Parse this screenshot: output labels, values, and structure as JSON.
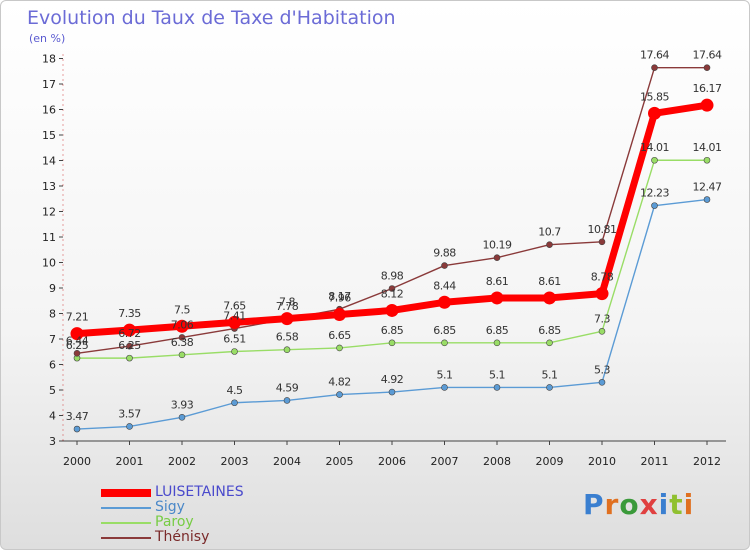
{
  "title": "Evolution du Taux de Taxe d'Habitation",
  "subtitle": "(en %)",
  "brand": "Proxiti",
  "chart_data": {
    "type": "line",
    "x": [
      "2000",
      "2001",
      "2002",
      "2003",
      "2004",
      "2005",
      "2006",
      "2007",
      "2008",
      "2009",
      "2010",
      "2011",
      "2012"
    ],
    "ylim": [
      3,
      18
    ],
    "yticks": [
      3,
      4,
      5,
      6,
      7,
      8,
      9,
      10,
      11,
      12,
      13,
      14,
      15,
      16,
      17,
      18
    ],
    "grid": false,
    "legend_position": "bottom-left",
    "series": [
      {
        "name": "LUISETAINES",
        "color": "#ff0000",
        "label_color": "#4a4acc",
        "emphasis": true,
        "values": [
          7.21,
          7.35,
          7.5,
          7.65,
          7.8,
          7.96,
          8.12,
          8.44,
          8.61,
          8.61,
          8.78,
          15.85,
          16.17
        ]
      },
      {
        "name": "Sigy",
        "color": "#5b9bd5",
        "label_color": "#4a88c8",
        "emphasis": false,
        "values": [
          3.47,
          3.57,
          3.93,
          4.5,
          4.59,
          4.82,
          4.92,
          5.1,
          5.1,
          5.1,
          5.3,
          12.23,
          12.47
        ]
      },
      {
        "name": "Paroy",
        "color": "#99dd66",
        "label_color": "#77cc44",
        "emphasis": false,
        "values": [
          6.25,
          6.25,
          6.38,
          6.51,
          6.58,
          6.65,
          6.85,
          6.85,
          6.85,
          6.85,
          7.3,
          14.01,
          14.01
        ]
      },
      {
        "name": "Thénisy",
        "color": "#8a3a3a",
        "label_color": "#7a2a2a",
        "emphasis": false,
        "values": [
          6.44,
          6.72,
          7.06,
          7.41,
          7.78,
          8.17,
          8.98,
          9.88,
          10.19,
          10.7,
          10.81,
          17.64,
          17.64
        ]
      }
    ],
    "point_labels": [
      [
        "7.21",
        "7.35",
        "7.5",
        "7.65",
        "7.8",
        "7.96",
        "8.12",
        "8.44",
        "8.61",
        "8.61",
        "8.78",
        "15.85",
        "16.17"
      ],
      [
        "3.47",
        "3.57",
        "3.93",
        "4.5",
        "4.59",
        "4.82",
        "4.92",
        "5.1",
        "5.1",
        "5.1",
        "5.3",
        "12.23",
        "12.47"
      ],
      [
        "6.25",
        "6.25",
        "6.38",
        "6.51",
        "6.58",
        "6.65",
        "6.85",
        "6.85",
        "6.85",
        "6.85",
        "7.3",
        "14.01",
        "14.01"
      ],
      [
        "6.44",
        "6.72",
        "7.06",
        "7.41",
        "7.78",
        "8.17",
        "8.98",
        "9.88",
        "10.19",
        "10.7",
        "10.81",
        "17.64",
        "17.64"
      ]
    ]
  }
}
